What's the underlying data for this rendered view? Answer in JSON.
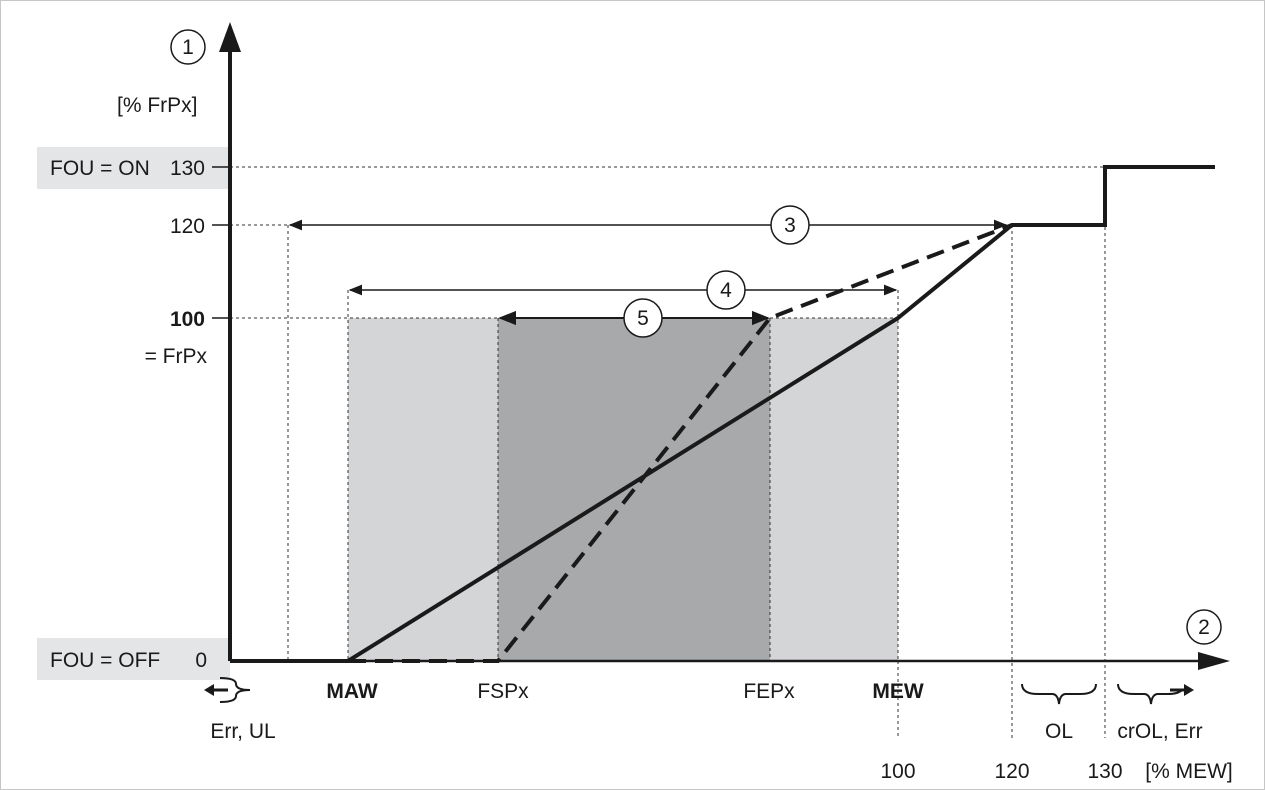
{
  "diagram": {
    "y_axis": {
      "marker": "1",
      "unit": "[% FrPx]",
      "ticks": [
        "130",
        "120",
        "100",
        "= FrPx",
        "0"
      ],
      "state_labels": [
        "FOU = ON",
        "FOU = OFF"
      ]
    },
    "x_axis": {
      "marker": "2",
      "unit": "[% MEW]",
      "points": [
        "MAW",
        "FSPx",
        "FEPx",
        "MEW"
      ],
      "ticks": [
        "100",
        "120",
        "130"
      ],
      "region_labels": [
        "Err, UL",
        "OL",
        "crOL, Err"
      ]
    },
    "callouts": [
      "3",
      "4",
      "5"
    ],
    "colors": {
      "light_band": "#d4d5d7",
      "dark_band": "#a8a9ab",
      "label_bg": "#e4e5e7",
      "line": "#1a1a1a",
      "frame": "#c6c6c6"
    }
  }
}
